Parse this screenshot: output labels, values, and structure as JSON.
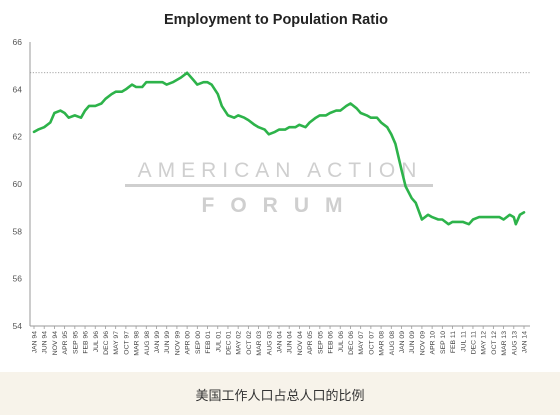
{
  "caption": "美国工作人口占总人口的比例",
  "colors": {
    "line": "#2db34a",
    "watermark": "#cfcfcf",
    "axis": "#9a9a9a",
    "reference": "#888888"
  },
  "watermark": {
    "line1": "AMERICAN ACTION",
    "line2": "FORUM"
  },
  "chart_data": {
    "type": "line",
    "title": "Employment to Population Ratio",
    "xlabel": "",
    "ylabel": "",
    "ylim": [
      54,
      66
    ],
    "yticks": [
      54,
      56,
      58,
      60,
      62,
      64,
      66
    ],
    "grid": false,
    "reference_line": 64.7,
    "reference_style": "dotted",
    "x_tick_labels": [
      "JAN 94",
      "JUN 94",
      "NOV 94",
      "APR 95",
      "SEP 95",
      "FEB 96",
      "JUL 96",
      "DEC 96",
      "MAY 97",
      "OCT 97",
      "MAR 98",
      "AUG 98",
      "JAN 99",
      "JUN 99",
      "NOV 99",
      "APR 00",
      "SEP 00",
      "FEB 01",
      "JUL 01",
      "DEC 01",
      "MAY 02",
      "OCT 02",
      "MAR 03",
      "AUG 03",
      "JAN 04",
      "JUN 04",
      "NOV 04",
      "APR 05",
      "SEP 05",
      "FEB 06",
      "JUL 06",
      "DEC 06",
      "MAY 07",
      "OCT 07",
      "MAR 08",
      "AUG 08",
      "JAN 09",
      "JUN 09",
      "NOV 09",
      "APR 10",
      "SEP 10",
      "FEB 11",
      "JUL 11",
      "DEC 11",
      "MAY 12",
      "OCT 12",
      "MAR 13",
      "AUG 13",
      "JAN 14"
    ],
    "series": [
      {
        "name": "",
        "x": [
          "JAN 94",
          "MAR 94",
          "JUN 94",
          "SEP 94",
          "NOV 94",
          "FEB 95",
          "APR 95",
          "JUN 95",
          "SEP 95",
          "DEC 95",
          "FEB 96",
          "APR 96",
          "JUL 96",
          "OCT 96",
          "DEC 96",
          "MAR 97",
          "MAY 97",
          "AUG 97",
          "OCT 97",
          "JAN 98",
          "MAR 98",
          "JUN 98",
          "AUG 98",
          "NOV 98",
          "JAN 99",
          "APR 99",
          "JUN 99",
          "SEP 99",
          "NOV 99",
          "JAN 00",
          "APR 00",
          "JUL 00",
          "SEP 00",
          "DEC 00",
          "FEB 01",
          "APR 01",
          "JUL 01",
          "SEP 01",
          "DEC 01",
          "MAR 02",
          "MAY 02",
          "AUG 02",
          "OCT 02",
          "JAN 03",
          "MAR 03",
          "JUN 03",
          "AUG 03",
          "NOV 03",
          "JAN 04",
          "APR 04",
          "JUN 04",
          "SEP 04",
          "NOV 04",
          "FEB 05",
          "APR 05",
          "JUL 05",
          "SEP 05",
          "DEC 05",
          "FEB 06",
          "MAY 06",
          "JUL 06",
          "OCT 06",
          "DEC 06",
          "MAR 07",
          "MAY 07",
          "AUG 07",
          "OCT 07",
          "JAN 08",
          "MAR 08",
          "JUN 08",
          "AUG 08",
          "OCT 08",
          "JAN 09",
          "MAR 09",
          "JUN 09",
          "AUG 09",
          "NOV 09",
          "FEB 10",
          "APR 10",
          "JUL 10",
          "SEP 10",
          "DEC 10",
          "FEB 11",
          "MAY 11",
          "JUL 11",
          "OCT 11",
          "DEC 11",
          "MAR 12",
          "MAY 12",
          "AUG 12",
          "OCT 12",
          "JAN 13",
          "MAR 13",
          "JUN 13",
          "AUG 13",
          "SEP 13",
          "NOV 13",
          "JAN 14"
        ],
        "values": [
          62.2,
          62.3,
          62.4,
          62.6,
          63.0,
          63.1,
          63.0,
          62.8,
          62.9,
          62.8,
          63.1,
          63.3,
          63.3,
          63.4,
          63.6,
          63.8,
          63.9,
          63.9,
          64.0,
          64.2,
          64.1,
          64.1,
          64.3,
          64.3,
          64.3,
          64.3,
          64.2,
          64.3,
          64.4,
          64.5,
          64.7,
          64.4,
          64.2,
          64.3,
          64.3,
          64.2,
          63.8,
          63.3,
          62.9,
          62.8,
          62.9,
          62.8,
          62.7,
          62.5,
          62.4,
          62.3,
          62.1,
          62.2,
          62.3,
          62.3,
          62.4,
          62.4,
          62.5,
          62.4,
          62.6,
          62.8,
          62.9,
          62.9,
          63.0,
          63.1,
          63.1,
          63.3,
          63.4,
          63.2,
          63.0,
          62.9,
          62.8,
          62.8,
          62.6,
          62.4,
          62.1,
          61.7,
          60.6,
          59.9,
          59.4,
          59.2,
          58.5,
          58.7,
          58.6,
          58.5,
          58.5,
          58.3,
          58.4,
          58.4,
          58.4,
          58.3,
          58.5,
          58.6,
          58.6,
          58.6,
          58.6,
          58.6,
          58.5,
          58.7,
          58.6,
          58.3,
          58.7,
          58.8
        ]
      }
    ]
  }
}
